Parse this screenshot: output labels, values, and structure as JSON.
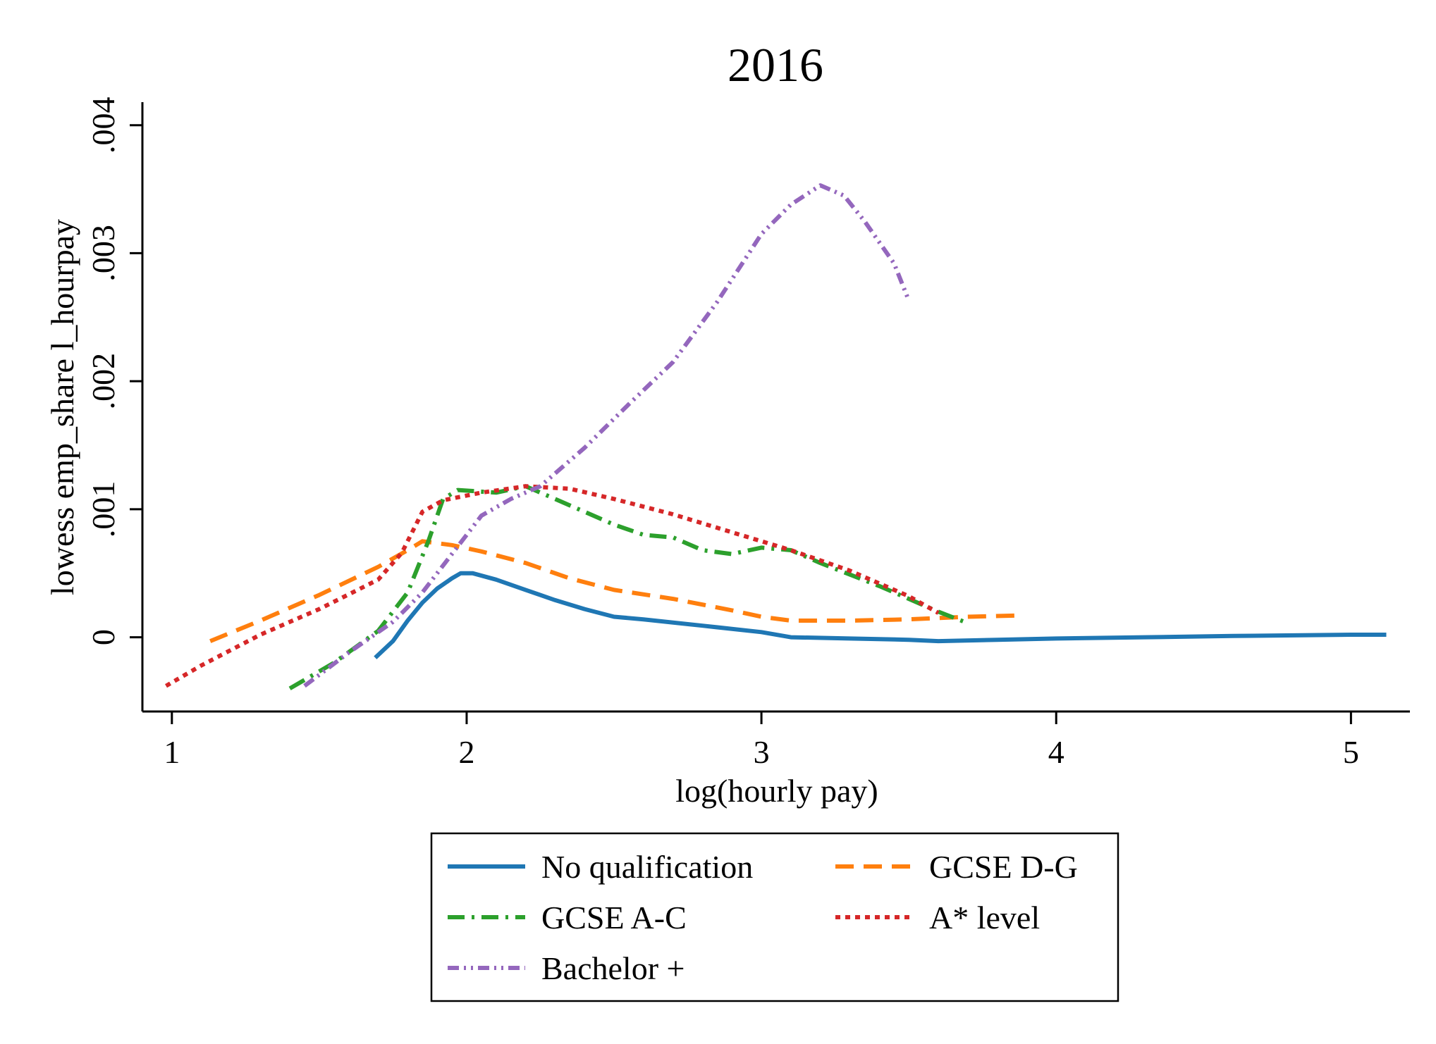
{
  "chart_data": {
    "type": "line",
    "title": "2016",
    "xlabel": "log(hourly pay)",
    "ylabel": "lowess emp_share l_hourpay",
    "xlim": [
      0.9,
      5.2
    ],
    "ylim": [
      -0.00058,
      0.00418
    ],
    "x_ticks": [
      1,
      2,
      3,
      4,
      5
    ],
    "x_tick_labels": [
      "1",
      "2",
      "3",
      "4",
      "5"
    ],
    "y_ticks": [
      0,
      0.001,
      0.002,
      0.003,
      0.004
    ],
    "y_tick_labels": [
      "0",
      ".001",
      ".002",
      ".003",
      ".004"
    ],
    "grid": false,
    "legend_position": "bottom",
    "series": [
      {
        "name": "No qualification",
        "color": "#1f77b4",
        "style": "solid",
        "points": [
          [
            1.69,
            -0.00016
          ],
          [
            1.75,
            -3e-05
          ],
          [
            1.8,
            0.00013
          ],
          [
            1.85,
            0.00027
          ],
          [
            1.9,
            0.00038
          ],
          [
            1.95,
            0.00046
          ],
          [
            1.98,
            0.0005
          ],
          [
            2.02,
            0.0005
          ],
          [
            2.1,
            0.00045
          ],
          [
            2.2,
            0.00037
          ],
          [
            2.3,
            0.00029
          ],
          [
            2.4,
            0.00022
          ],
          [
            2.5,
            0.00016
          ],
          [
            2.6,
            0.00014
          ],
          [
            2.8,
            9e-05
          ],
          [
            3.0,
            4e-05
          ],
          [
            3.1,
            0.0
          ],
          [
            3.3,
            -1e-05
          ],
          [
            3.5,
            -2e-05
          ],
          [
            3.6,
            -3e-05
          ],
          [
            3.8,
            -2e-05
          ],
          [
            4.0,
            -1e-05
          ],
          [
            4.3,
            0.0
          ],
          [
            4.6,
            1e-05
          ],
          [
            5.0,
            2e-05
          ],
          [
            5.12,
            2e-05
          ]
        ]
      },
      {
        "name": "GCSE D-G",
        "color": "#ff7f0e",
        "style": "dashed",
        "points": [
          [
            1.13,
            -3e-05
          ],
          [
            1.3,
            0.00013
          ],
          [
            1.5,
            0.00033
          ],
          [
            1.7,
            0.00055
          ],
          [
            1.8,
            0.00068
          ],
          [
            1.85,
            0.00075
          ],
          [
            1.95,
            0.00072
          ],
          [
            2.05,
            0.00067
          ],
          [
            2.2,
            0.00058
          ],
          [
            2.35,
            0.00046
          ],
          [
            2.5,
            0.00037
          ],
          [
            2.7,
            0.0003
          ],
          [
            2.9,
            0.00021
          ],
          [
            3.0,
            0.00016
          ],
          [
            3.1,
            0.00013
          ],
          [
            3.3,
            0.00013
          ],
          [
            3.5,
            0.00014
          ],
          [
            3.7,
            0.00016
          ],
          [
            3.88,
            0.00017
          ]
        ]
      },
      {
        "name": "GCSE A-C",
        "color": "#2ca02c",
        "style": "dashdot",
        "points": [
          [
            1.4,
            -0.0004
          ],
          [
            1.55,
            -0.0002
          ],
          [
            1.7,
            5e-05
          ],
          [
            1.8,
            0.00035
          ],
          [
            1.87,
            0.00075
          ],
          [
            1.92,
            0.00108
          ],
          [
            1.97,
            0.00115
          ],
          [
            2.1,
            0.00113
          ],
          [
            2.2,
            0.00118
          ],
          [
            2.3,
            0.00108
          ],
          [
            2.4,
            0.00098
          ],
          [
            2.5,
            0.00088
          ],
          [
            2.6,
            0.0008
          ],
          [
            2.7,
            0.00078
          ],
          [
            2.8,
            0.00068
          ],
          [
            2.9,
            0.00065
          ],
          [
            3.0,
            0.0007
          ],
          [
            3.1,
            0.00068
          ],
          [
            3.2,
            0.00058
          ],
          [
            3.4,
            0.0004
          ],
          [
            3.6,
            0.0002
          ],
          [
            3.7,
            0.00011
          ]
        ]
      },
      {
        "name": "A* level",
        "color": "#d62728",
        "style": "dotted",
        "points": [
          [
            0.98,
            -0.00038
          ],
          [
            1.1,
            -0.00022
          ],
          [
            1.3,
            2e-05
          ],
          [
            1.5,
            0.00022
          ],
          [
            1.7,
            0.00045
          ],
          [
            1.78,
            0.00066
          ],
          [
            1.85,
            0.00098
          ],
          [
            1.92,
            0.00107
          ],
          [
            2.05,
            0.00113
          ],
          [
            2.2,
            0.00118
          ],
          [
            2.35,
            0.00116
          ],
          [
            2.5,
            0.00108
          ],
          [
            2.7,
            0.00096
          ],
          [
            2.9,
            0.00082
          ],
          [
            3.1,
            0.00068
          ],
          [
            3.3,
            0.00052
          ],
          [
            3.5,
            0.00032
          ],
          [
            3.6,
            0.00019
          ]
        ]
      },
      {
        "name": "Bachelor +",
        "color": "#9467bd",
        "style": "dashdotdot",
        "points": [
          [
            1.45,
            -0.00038
          ],
          [
            1.6,
            -0.00012
          ],
          [
            1.75,
            0.00012
          ],
          [
            1.85,
            0.00035
          ],
          [
            1.95,
            0.00065
          ],
          [
            2.05,
            0.00095
          ],
          [
            2.15,
            0.00108
          ],
          [
            2.25,
            0.00118
          ],
          [
            2.4,
            0.00148
          ],
          [
            2.55,
            0.00182
          ],
          [
            2.7,
            0.00215
          ],
          [
            2.85,
            0.00262
          ],
          [
            3.0,
            0.00315
          ],
          [
            3.1,
            0.00338
          ],
          [
            3.2,
            0.00353
          ],
          [
            3.28,
            0.00345
          ],
          [
            3.35,
            0.00325
          ],
          [
            3.45,
            0.00292
          ],
          [
            3.5,
            0.00263
          ]
        ]
      }
    ]
  }
}
